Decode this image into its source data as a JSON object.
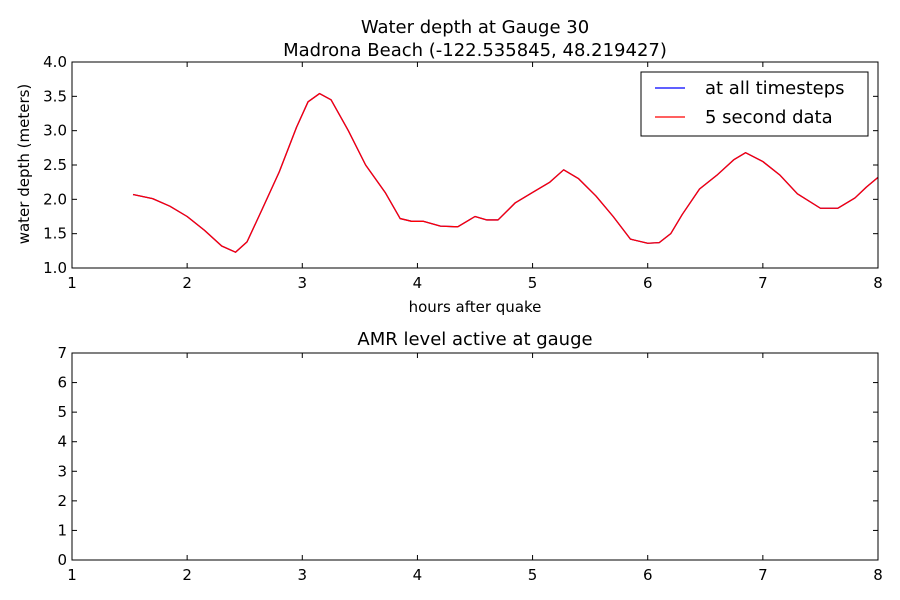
{
  "chart_data": [
    {
      "type": "line",
      "title": "Water depth at Gauge 30",
      "subtitle": "Madrona Beach  (-122.535845, 48.219427)",
      "xlabel": "hours after quake",
      "ylabel": "water depth (meters)",
      "xlim": [
        1,
        8
      ],
      "ylim": [
        1.0,
        4.0
      ],
      "x_ticks": [
        "1",
        "2",
        "3",
        "4",
        "5",
        "6",
        "7",
        "8"
      ],
      "y_ticks": [
        "1.0",
        "1.5",
        "2.0",
        "2.5",
        "3.0",
        "3.5",
        "4.0"
      ],
      "grid": false,
      "legend_position": "top-right",
      "series": [
        {
          "name": "at all timesteps",
          "color": "#0000ff",
          "x": [
            1.53,
            1.7,
            1.85,
            2.0,
            2.15,
            2.3,
            2.42,
            2.52,
            2.65,
            2.8,
            2.95,
            3.05,
            3.15,
            3.25,
            3.4,
            3.55,
            3.72,
            3.85,
            3.95,
            4.05,
            4.2,
            4.35,
            4.45,
            4.5,
            4.6,
            4.7,
            4.85,
            5.0,
            5.15,
            5.27,
            5.4,
            5.55,
            5.7,
            5.85,
            6.0,
            6.1,
            6.2,
            6.3,
            6.45,
            6.6,
            6.75,
            6.85,
            7.0,
            7.15,
            7.3,
            7.5,
            7.65,
            7.8,
            7.9,
            8.0
          ],
          "y": [
            2.07,
            2.01,
            1.9,
            1.75,
            1.55,
            1.32,
            1.23,
            1.38,
            1.85,
            2.4,
            3.05,
            3.42,
            3.54,
            3.45,
            3.0,
            2.5,
            2.1,
            1.72,
            1.68,
            1.68,
            1.61,
            1.6,
            1.7,
            1.75,
            1.7,
            1.7,
            1.95,
            2.1,
            2.25,
            2.43,
            2.3,
            2.05,
            1.75,
            1.42,
            1.36,
            1.37,
            1.5,
            1.78,
            2.15,
            2.35,
            2.58,
            2.68,
            2.55,
            2.35,
            2.08,
            1.87,
            1.87,
            2.02,
            2.18,
            2.32
          ]
        },
        {
          "name": "5 second data",
          "color": "#ff0000",
          "x": [
            1.53,
            1.7,
            1.85,
            2.0,
            2.15,
            2.3,
            2.42,
            2.52,
            2.65,
            2.8,
            2.95,
            3.05,
            3.15,
            3.25,
            3.4,
            3.55,
            3.72,
            3.85,
            3.95,
            4.05,
            4.2,
            4.35,
            4.45,
            4.5,
            4.6,
            4.7,
            4.85,
            5.0,
            5.15,
            5.27,
            5.4,
            5.55,
            5.7,
            5.85,
            6.0,
            6.1,
            6.2,
            6.3,
            6.45,
            6.6,
            6.75,
            6.85,
            7.0,
            7.15,
            7.3,
            7.5,
            7.65,
            7.8,
            7.9,
            8.0
          ],
          "y": [
            2.07,
            2.01,
            1.9,
            1.75,
            1.55,
            1.32,
            1.23,
            1.38,
            1.85,
            2.4,
            3.05,
            3.42,
            3.54,
            3.45,
            3.0,
            2.5,
            2.1,
            1.72,
            1.68,
            1.68,
            1.61,
            1.6,
            1.7,
            1.75,
            1.7,
            1.7,
            1.95,
            2.1,
            2.25,
            2.43,
            2.3,
            2.05,
            1.75,
            1.42,
            1.36,
            1.37,
            1.5,
            1.78,
            2.15,
            2.35,
            2.58,
            2.68,
            2.55,
            2.35,
            2.08,
            1.87,
            1.87,
            2.02,
            2.18,
            2.32
          ]
        }
      ]
    },
    {
      "type": "line",
      "title": "AMR level active at gauge",
      "xlabel": "",
      "ylabel": "",
      "xlim": [
        1,
        8
      ],
      "ylim": [
        0,
        7
      ],
      "x_ticks": [
        "1",
        "2",
        "3",
        "4",
        "5",
        "6",
        "7",
        "8"
      ],
      "y_ticks": [
        "0",
        "1",
        "2",
        "3",
        "4",
        "5",
        "6",
        "7"
      ],
      "grid": false,
      "series": []
    }
  ]
}
